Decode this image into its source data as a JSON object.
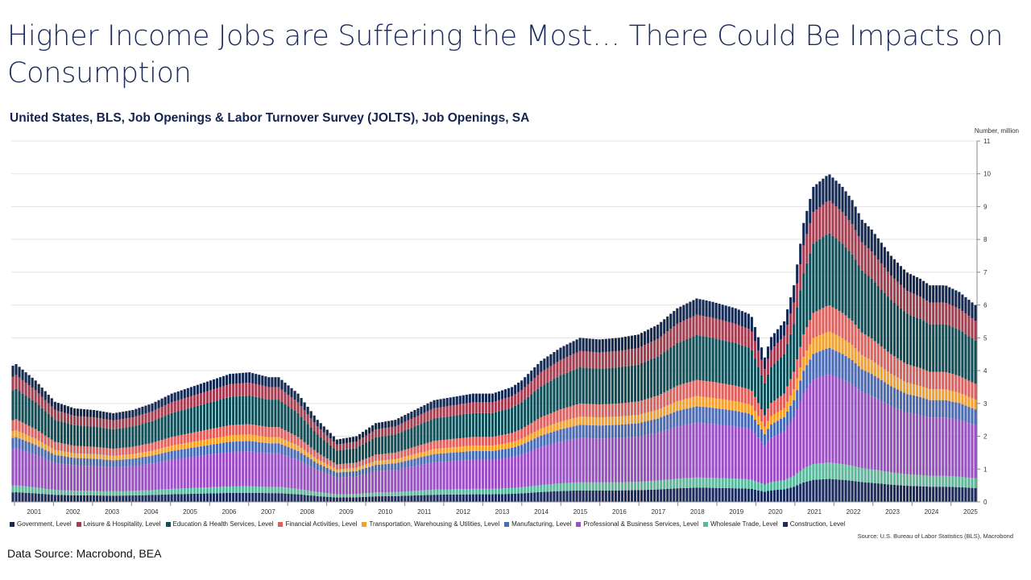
{
  "slide": {
    "title": "Higher Income Jobs are Suffering the Most… There Could Be Impacts on Consumption",
    "data_source": "Data Source: Macrobond, BEA"
  },
  "chart_data": {
    "type": "bar",
    "stacked": true,
    "title": "United States, BLS, Job Openings & Labor Turnover Survey (JOLTS), Job Openings, SA",
    "ylabel": "Number, million",
    "ylim": [
      0,
      11
    ],
    "yticks": [
      0,
      1,
      2,
      3,
      4,
      5,
      6,
      7,
      8,
      9,
      10,
      11
    ],
    "x_start": 2000.917,
    "x_end": 2025.667,
    "categories": [
      "2001",
      "2002",
      "2003",
      "2004",
      "2005",
      "2006",
      "2007",
      "2008",
      "2009",
      "2010",
      "2011",
      "2012",
      "2013",
      "2014",
      "2015",
      "2016",
      "2017",
      "2018",
      "2019",
      "2020",
      "2021",
      "2022",
      "2023",
      "2024",
      "2025"
    ],
    "series": [
      {
        "name": "Construction, Level",
        "color": "#1d2c5e"
      },
      {
        "name": "Wholesale Trade, Level",
        "color": "#5bb89a"
      },
      {
        "name": "Professional & Business Services, Level",
        "color": "#9a4fc4"
      },
      {
        "name": "Manufacturing, Level",
        "color": "#4a6bb5"
      },
      {
        "name": "Transportation, Warehousing & Utilities, Level",
        "color": "#f3a02c"
      },
      {
        "name": "Financial Activities, Level",
        "color": "#e0605e"
      },
      {
        "name": "Education & Health Services, Level",
        "color": "#0f4f57"
      },
      {
        "name": "Leisure & Hospitality, Level",
        "color": "#a63e52"
      },
      {
        "name": "Government, Level",
        "color": "#152a52"
      }
    ],
    "legend_order": [
      "Government, Level",
      "Leisure & Hospitality, Level",
      "Education & Health Services, Level",
      "Financial Activities, Level",
      "Transportation, Warehousing & Utilities, Level",
      "Manufacturing, Level",
      "Professional & Business Services, Level",
      "Wholesale Trade, Level",
      "Construction, Level"
    ],
    "shares": [
      0.07,
      0.05,
      0.27,
      0.08,
      0.05,
      0.08,
      0.22,
      0.1,
      0.08
    ],
    "total_keyframes": [
      [
        2000.917,
        4.15
      ],
      [
        2001.0,
        4.2
      ],
      [
        2001.5,
        3.7
      ],
      [
        2002.0,
        3.05
      ],
      [
        2002.5,
        2.85
      ],
      [
        2003.0,
        2.8
      ],
      [
        2003.5,
        2.7
      ],
      [
        2004.0,
        2.8
      ],
      [
        2004.5,
        3.0
      ],
      [
        2005.0,
        3.3
      ],
      [
        2005.5,
        3.5
      ],
      [
        2006.0,
        3.7
      ],
      [
        2006.5,
        3.9
      ],
      [
        2007.0,
        3.95
      ],
      [
        2007.5,
        3.8
      ],
      [
        2007.75,
        3.8
      ],
      [
        2008.25,
        3.3
      ],
      [
        2008.75,
        2.5
      ],
      [
        2009.25,
        1.9
      ],
      [
        2009.75,
        2.0
      ],
      [
        2010.25,
        2.4
      ],
      [
        2010.75,
        2.5
      ],
      [
        2011.25,
        2.8
      ],
      [
        2011.75,
        3.1
      ],
      [
        2012.25,
        3.2
      ],
      [
        2012.75,
        3.3
      ],
      [
        2013.25,
        3.3
      ],
      [
        2013.75,
        3.5
      ],
      [
        2014.0,
        3.7
      ],
      [
        2014.5,
        4.3
      ],
      [
        2015.0,
        4.7
      ],
      [
        2015.5,
        5.0
      ],
      [
        2016.0,
        4.95
      ],
      [
        2016.5,
        5.0
      ],
      [
        2017.0,
        5.1
      ],
      [
        2017.5,
        5.4
      ],
      [
        2018.0,
        5.9
      ],
      [
        2018.5,
        6.2
      ],
      [
        2018.9,
        6.1
      ],
      [
        2019.5,
        5.9
      ],
      [
        2019.9,
        5.7
      ],
      [
        2020.25,
        4.4
      ],
      [
        2020.4,
        5.0
      ],
      [
        2020.75,
        5.5
      ],
      [
        2021.0,
        6.6
      ],
      [
        2021.25,
        8.5
      ],
      [
        2021.5,
        9.6
      ],
      [
        2021.9,
        10.0
      ],
      [
        2022.25,
        9.6
      ],
      [
        2022.5,
        9.2
      ],
      [
        2022.75,
        8.6
      ],
      [
        2023.0,
        8.3
      ],
      [
        2023.5,
        7.5
      ],
      [
        2023.9,
        7.0
      ],
      [
        2024.25,
        6.8
      ],
      [
        2024.5,
        6.6
      ],
      [
        2024.9,
        6.6
      ],
      [
        2025.25,
        6.4
      ],
      [
        2025.667,
        6.0
      ]
    ],
    "source": "Source: U.S. Bureau of Labor Statistics (BLS), Macrobond"
  }
}
